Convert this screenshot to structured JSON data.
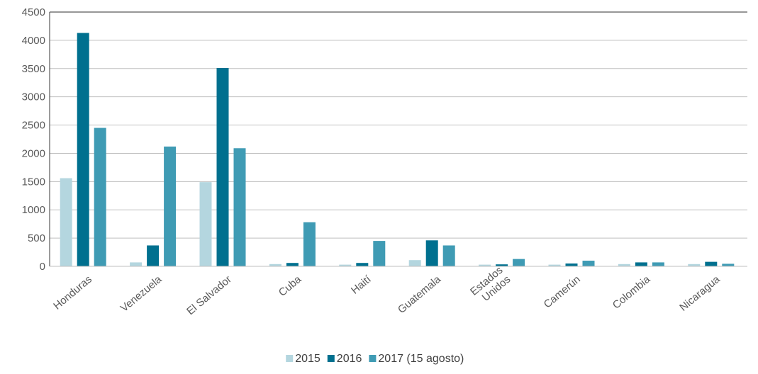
{
  "chart_data": {
    "type": "bar",
    "title": "",
    "xlabel": "",
    "ylabel": "",
    "ylim": [
      0,
      4500
    ],
    "yticks": [
      0,
      500,
      1000,
      1500,
      2000,
      2500,
      3000,
      3500,
      4000,
      4500
    ],
    "grid": true,
    "legend_position": "bottom",
    "categories": [
      [
        "Honduras"
      ],
      [
        "Venezuela"
      ],
      [
        "El Salvador"
      ],
      [
        "Cuba"
      ],
      [
        "Haití"
      ],
      [
        "Guatemala"
      ],
      [
        "Estados",
        "Unidos"
      ],
      [
        "Camerún"
      ],
      [
        "Colombia"
      ],
      [
        "Nicaragua"
      ]
    ],
    "series": [
      {
        "name": "2015",
        "color": "#b4d6df",
        "values": [
          1560,
          70,
          1490,
          40,
          30,
          110,
          30,
          30,
          40,
          40
        ]
      },
      {
        "name": "2016",
        "color": "#00708f",
        "values": [
          4130,
          370,
          3510,
          60,
          60,
          460,
          35,
          50,
          70,
          80
        ]
      },
      {
        "name": "2017 (15 agosto)",
        "color": "#3f9bb4",
        "values": [
          2450,
          2120,
          2090,
          780,
          450,
          370,
          130,
          100,
          70,
          45
        ]
      }
    ]
  }
}
